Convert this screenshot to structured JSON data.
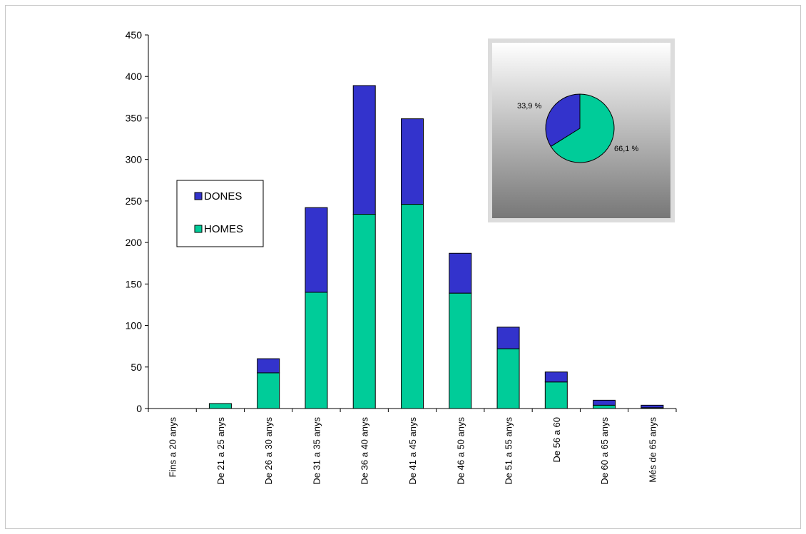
{
  "chart_data": {
    "type": "bar",
    "stacked": true,
    "categories": [
      "Fins a 20 anys",
      "De 21 a 25 anys",
      "De 26 a 30 anys",
      "De 31 a 35 anys",
      "De 36 a 40 anys",
      "De 41 a 45 anys",
      "De 46 a 50 anys",
      "De 51 a 55 anys",
      "De 56 a 60",
      "De 60 a 65 anys",
      "Més de 65 anys"
    ],
    "series": [
      {
        "name": "HOMES",
        "color": "#00cc99",
        "values": [
          0,
          6,
          43,
          140,
          234,
          246,
          139,
          72,
          32,
          4,
          1
        ]
      },
      {
        "name": "DONES",
        "color": "#3333cc",
        "values": [
          0,
          0,
          17,
          102,
          155,
          103,
          48,
          26,
          12,
          6,
          3
        ]
      }
    ],
    "ylim": [
      0,
      450
    ],
    "yticks": [
      0,
      50,
      100,
      150,
      200,
      250,
      300,
      350,
      400,
      450
    ],
    "legend": {
      "placement": "left",
      "entries": [
        "DONES",
        "HOMES"
      ]
    },
    "inset_pie": {
      "type": "pie",
      "placement": "top-right",
      "slices": [
        {
          "name": "DONES",
          "value": 33.9,
          "label": "33,9 %",
          "color": "#3333cc"
        },
        {
          "name": "HOMES",
          "value": 66.1,
          "label": "66,1 %",
          "color": "#00cc99"
        }
      ]
    }
  }
}
